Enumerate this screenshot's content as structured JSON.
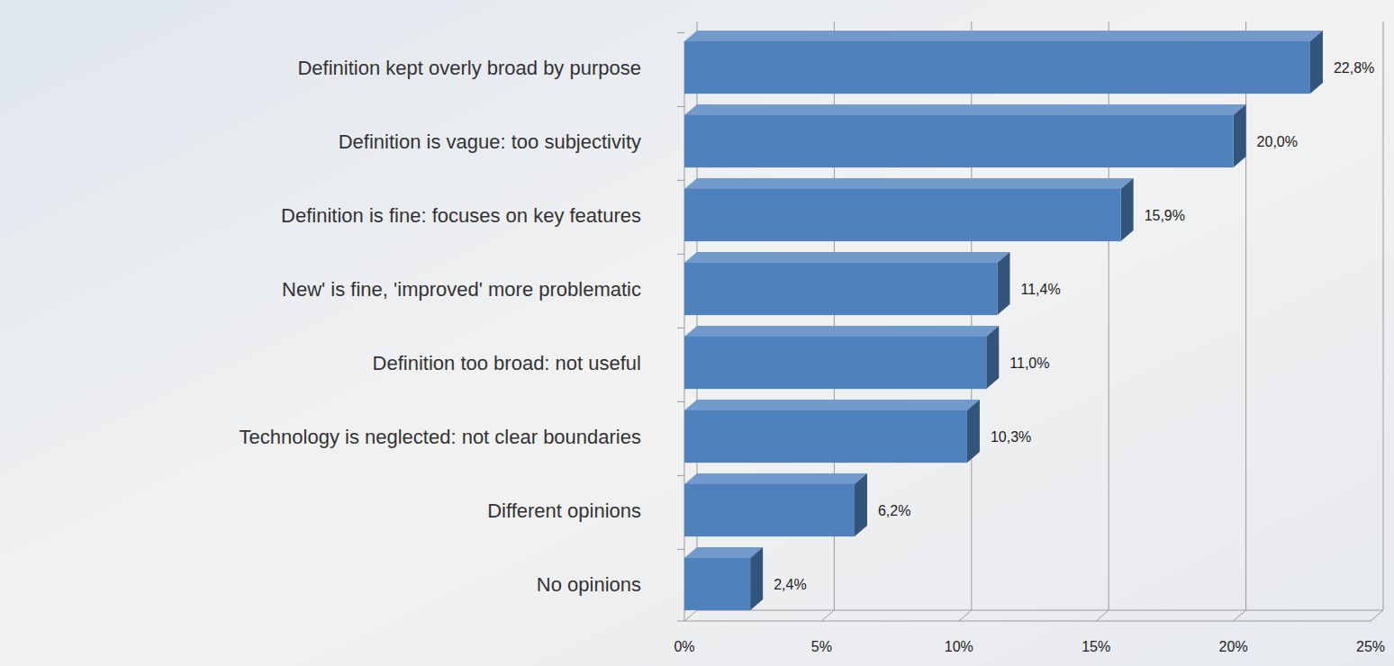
{
  "chart_data": {
    "type": "bar",
    "orientation": "horizontal",
    "categories": [
      "Definition kept overly broad by purpose",
      "Definition is vague: too subjectivity",
      "Definition is fine: focuses on key features",
      "New' is fine, 'improved' more problematic",
      "Definition too broad: not useful",
      "Technology is neglected: not clear boundaries",
      "Different opinions",
      "No opinions"
    ],
    "values": [
      22.8,
      20.0,
      15.9,
      11.4,
      11.0,
      10.3,
      6.2,
      2.4
    ],
    "value_labels": [
      "22,8%",
      "20,0%",
      "15,9%",
      "11,4%",
      "11,0%",
      "10,3%",
      "6,2%",
      "2,4%"
    ],
    "color": "#4f81bd",
    "xlim": [
      0,
      25
    ],
    "xticks": [
      {
        "value": 0,
        "label": "0%"
      },
      {
        "value": 5,
        "label": "5%"
      },
      {
        "value": 10,
        "label": "10%"
      },
      {
        "value": 15,
        "label": "15%"
      },
      {
        "value": 20,
        "label": "20%"
      },
      {
        "value": 25,
        "label": "25%"
      }
    ],
    "grid": true,
    "data_labels": true
  }
}
